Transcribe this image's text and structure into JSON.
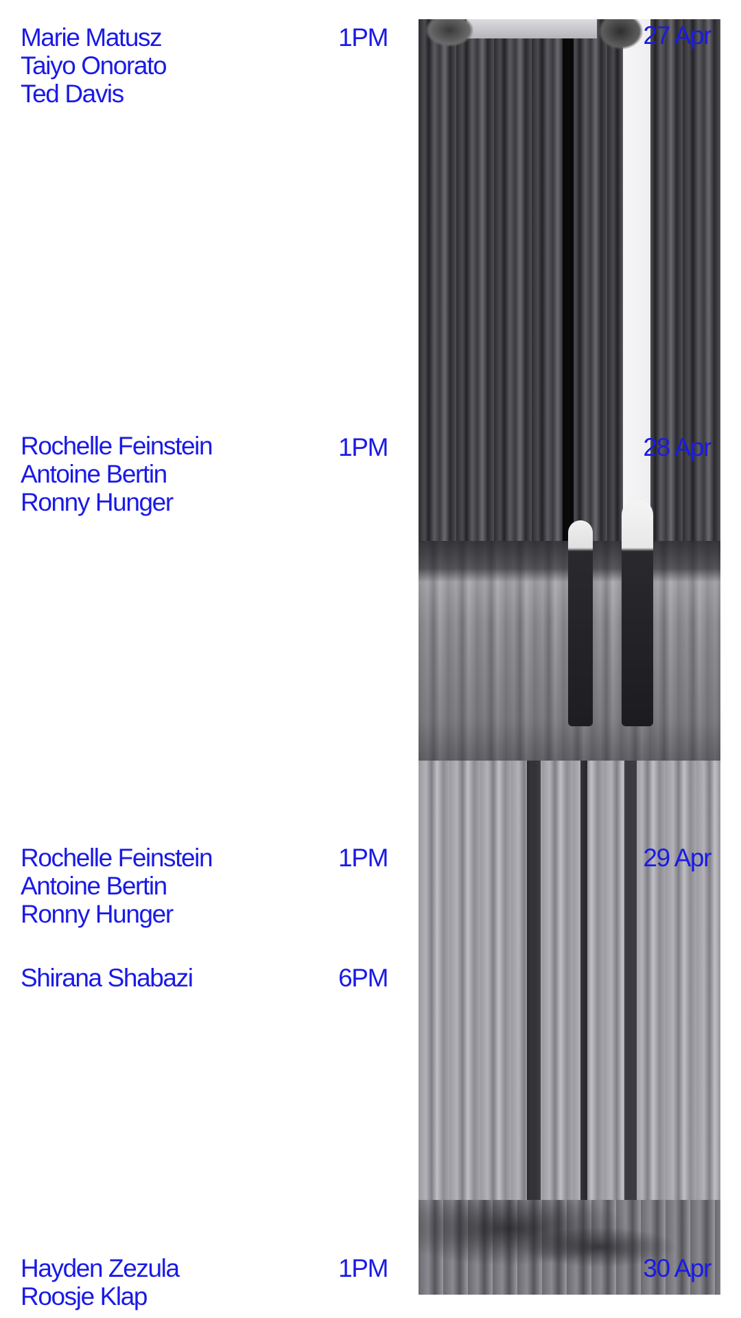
{
  "accent_color": "#1a1ae6",
  "photo": {
    "description_icon": "distorted-photo-icon"
  },
  "schedule": [
    {
      "date": "27 Apr",
      "slots": [
        {
          "time": "1PM",
          "names": [
            "Marie Matusz",
            "Taiyo Onorato",
            "Ted Davis"
          ]
        }
      ]
    },
    {
      "date": "28 Apr",
      "slots": [
        {
          "time": "1PM",
          "names": [
            "Rochelle Feinstein",
            "Antoine Bertin",
            "Ronny Hunger"
          ]
        }
      ]
    },
    {
      "date": "29 Apr",
      "slots": [
        {
          "time": "1PM",
          "names": [
            "Rochelle Feinstein",
            "Antoine Bertin",
            "Ronny Hunger"
          ]
        },
        {
          "time": "6PM",
          "names": [
            "Shirana Shabazi"
          ]
        }
      ]
    },
    {
      "date": "30 Apr",
      "slots": [
        {
          "time": "1PM",
          "names": [
            "Hayden Zezula",
            "Roosje Klap"
          ]
        }
      ]
    }
  ]
}
